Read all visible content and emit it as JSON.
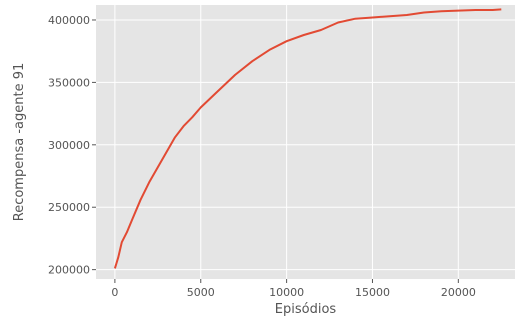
{
  "chart_data": {
    "type": "line",
    "title": "",
    "xlabel": "Episódios",
    "ylabel": "Recompensa -agente 91",
    "xlim": [
      -1100,
      23300
    ],
    "ylim": [
      192500,
      412000
    ],
    "x_ticks": [
      0,
      5000,
      10000,
      15000,
      20000
    ],
    "x_tick_labels": [
      "0",
      "5000",
      "10000",
      "15000",
      "20000"
    ],
    "y_ticks": [
      200000,
      250000,
      300000,
      350000,
      400000
    ],
    "y_tick_labels": [
      "200000",
      "250000",
      "300000",
      "350000",
      "400000"
    ],
    "grid": true,
    "legend": "none",
    "style": {
      "plot_background": "#e5e5e5",
      "grid_color": "#ffffff",
      "line_color": "#e24a33"
    },
    "series": [
      {
        "x": [
          0,
          200,
          400,
          700,
          1000,
          1500,
          2000,
          2500,
          3000,
          3500,
          4000,
          4500,
          5000,
          6000,
          7000,
          8000,
          9000,
          10000,
          11000,
          12000,
          13000,
          14000,
          15000,
          16000,
          17000,
          18000,
          19000,
          20000,
          21000,
          22000,
          22500
        ],
        "y": [
          201000,
          210000,
          222000,
          230000,
          240000,
          256000,
          270000,
          282000,
          294000,
          306000,
          315000,
          322000,
          330000,
          343000,
          356000,
          367000,
          376000,
          383000,
          388000,
          392000,
          398000,
          401000,
          402000,
          403000,
          404000,
          406000,
          407000,
          407500,
          408000,
          408000,
          408500
        ]
      }
    ]
  }
}
